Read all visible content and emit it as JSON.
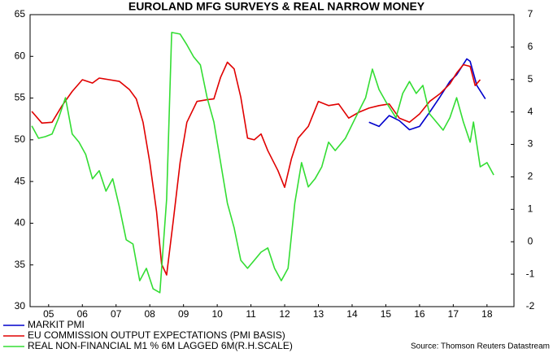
{
  "chart_data": {
    "type": "line",
    "title": "EUROLAND MFG SURVEYS & REAL NARROW MONEY",
    "source": "Source: Thomson Reuters Datastream",
    "xlim": [
      2004.95,
      2019.3
    ],
    "xticks": [
      {
        "value": 2005.5,
        "label": "05"
      },
      {
        "value": 2006.5,
        "label": "06"
      },
      {
        "value": 2007.5,
        "label": "07"
      },
      {
        "value": 2008.5,
        "label": "08"
      },
      {
        "value": 2009.5,
        "label": "09"
      },
      {
        "value": 2010.5,
        "label": "10"
      },
      {
        "value": 2011.5,
        "label": "11"
      },
      {
        "value": 2012.5,
        "label": "12"
      },
      {
        "value": 2013.5,
        "label": "13"
      },
      {
        "value": 2014.5,
        "label": "14"
      },
      {
        "value": 2015.5,
        "label": "15"
      },
      {
        "value": 2016.5,
        "label": "16"
      },
      {
        "value": 2017.5,
        "label": "17"
      },
      {
        "value": 2018.5,
        "label": "18"
      }
    ],
    "ylim": [
      30,
      65
    ],
    "yticks": [
      30,
      35,
      40,
      45,
      50,
      55,
      60,
      65
    ],
    "y2lim": [
      -2,
      7
    ],
    "y2ticks": [
      -2,
      -1,
      0,
      1,
      2,
      3,
      4,
      5,
      6,
      7
    ],
    "grid": false,
    "series": [
      {
        "name": "MARKIT PMI",
        "color": "#0000cc",
        "x": [
          2015.0,
          2015.3,
          2015.6,
          2015.9,
          2016.2,
          2016.5,
          2016.8,
          2017.1,
          2017.4,
          2017.6,
          2017.9,
          2018.0,
          2018.2,
          2018.45
        ],
        "values": [
          52.1,
          51.6,
          52.9,
          52.3,
          51.2,
          51.6,
          53.3,
          55.1,
          57,
          57.8,
          59.7,
          59.4,
          56.5,
          54.9
        ]
      },
      {
        "name": "EU COMMISSION OUTPUT EXPECTATIONS (PMI BASIS)",
        "color": "#e00000",
        "x": [
          2005.0,
          2005.3,
          2005.6,
          2005.9,
          2006.2,
          2006.5,
          2006.8,
          2007.0,
          2007.3,
          2007.6,
          2007.9,
          2008.1,
          2008.3,
          2008.5,
          2008.7,
          2008.85,
          2009.0,
          2009.2,
          2009.4,
          2009.6,
          2009.9,
          2010.2,
          2010.4,
          2010.6,
          2010.8,
          2011.0,
          2011.2,
          2011.4,
          2011.6,
          2011.8,
          2012.0,
          2012.3,
          2012.5,
          2012.7,
          2012.9,
          2013.2,
          2013.5,
          2013.8,
          2014.1,
          2014.4,
          2014.7,
          2015.0,
          2015.3,
          2015.6,
          2015.9,
          2016.2,
          2016.5,
          2016.8,
          2017.1,
          2017.4,
          2017.6,
          2017.8,
          2018.0,
          2018.15,
          2018.3
        ],
        "values": [
          53.4,
          52,
          52.1,
          54.1,
          55.8,
          57.2,
          56.8,
          57.4,
          57.2,
          57,
          56,
          54.9,
          52.1,
          47.3,
          41.4,
          35.1,
          33.8,
          40.4,
          47.3,
          52.1,
          54.6,
          54.8,
          54.9,
          57.5,
          59.3,
          58.5,
          55.1,
          50.2,
          50,
          50.7,
          48.7,
          46.3,
          44.3,
          47.7,
          50.2,
          51.6,
          54.6,
          54.1,
          54.3,
          52.6,
          53.3,
          53.8,
          54.1,
          54.3,
          52.6,
          52.1,
          53.1,
          54.6,
          55.5,
          56.7,
          58,
          59,
          58.8,
          56.5,
          57.2
        ]
      },
      {
        "name": "REAL NON-FINANCIAL M1 % 6M LAGGED 6M(R.H.SCALE)",
        "color": "#33dd33",
        "axis": "y2",
        "x": [
          2005.0,
          2005.2,
          2005.4,
          2005.6,
          2005.8,
          2006.0,
          2006.2,
          2006.4,
          2006.6,
          2006.8,
          2007.0,
          2007.2,
          2007.4,
          2007.6,
          2007.8,
          2008.0,
          2008.2,
          2008.4,
          2008.6,
          2008.8,
          2009.0,
          2009.15,
          2009.4,
          2009.6,
          2009.8,
          2010.0,
          2010.2,
          2010.4,
          2010.6,
          2010.8,
          2011.0,
          2011.2,
          2011.4,
          2011.6,
          2011.8,
          2012.0,
          2012.2,
          2012.4,
          2012.6,
          2012.8,
          2013.0,
          2013.2,
          2013.4,
          2013.6,
          2013.8,
          2014.0,
          2014.3,
          2014.6,
          2014.9,
          2015.1,
          2015.3,
          2015.5,
          2015.8,
          2016.0,
          2016.2,
          2016.4,
          2016.6,
          2016.8,
          2017.0,
          2017.2,
          2017.4,
          2017.6,
          2017.8,
          2018.0,
          2018.1,
          2018.3,
          2018.5,
          2018.7
        ],
        "values": [
          3.57,
          3.19,
          3.24,
          3.32,
          3.82,
          4.44,
          3.32,
          3.07,
          2.69,
          1.94,
          2.19,
          1.56,
          1.94,
          1.06,
          0.06,
          -0.07,
          -1.2,
          -0.82,
          -1.45,
          -1.57,
          1.31,
          6.45,
          6.4,
          6.07,
          5.7,
          5.45,
          4.44,
          3.69,
          2.44,
          1.19,
          0.43,
          -0.57,
          -0.82,
          -0.57,
          -0.32,
          -0.19,
          -0.82,
          -1.2,
          -0.82,
          1.19,
          2.44,
          1.69,
          1.94,
          2.31,
          3.07,
          2.81,
          3.19,
          3.82,
          4.44,
          5.32,
          4.69,
          4.32,
          3.82,
          4.57,
          4.94,
          4.57,
          4.82,
          3.94,
          3.69,
          3.44,
          3.82,
          4.44,
          3.69,
          3.07,
          3.69,
          2.31,
          2.44,
          2.06
        ]
      }
    ]
  }
}
